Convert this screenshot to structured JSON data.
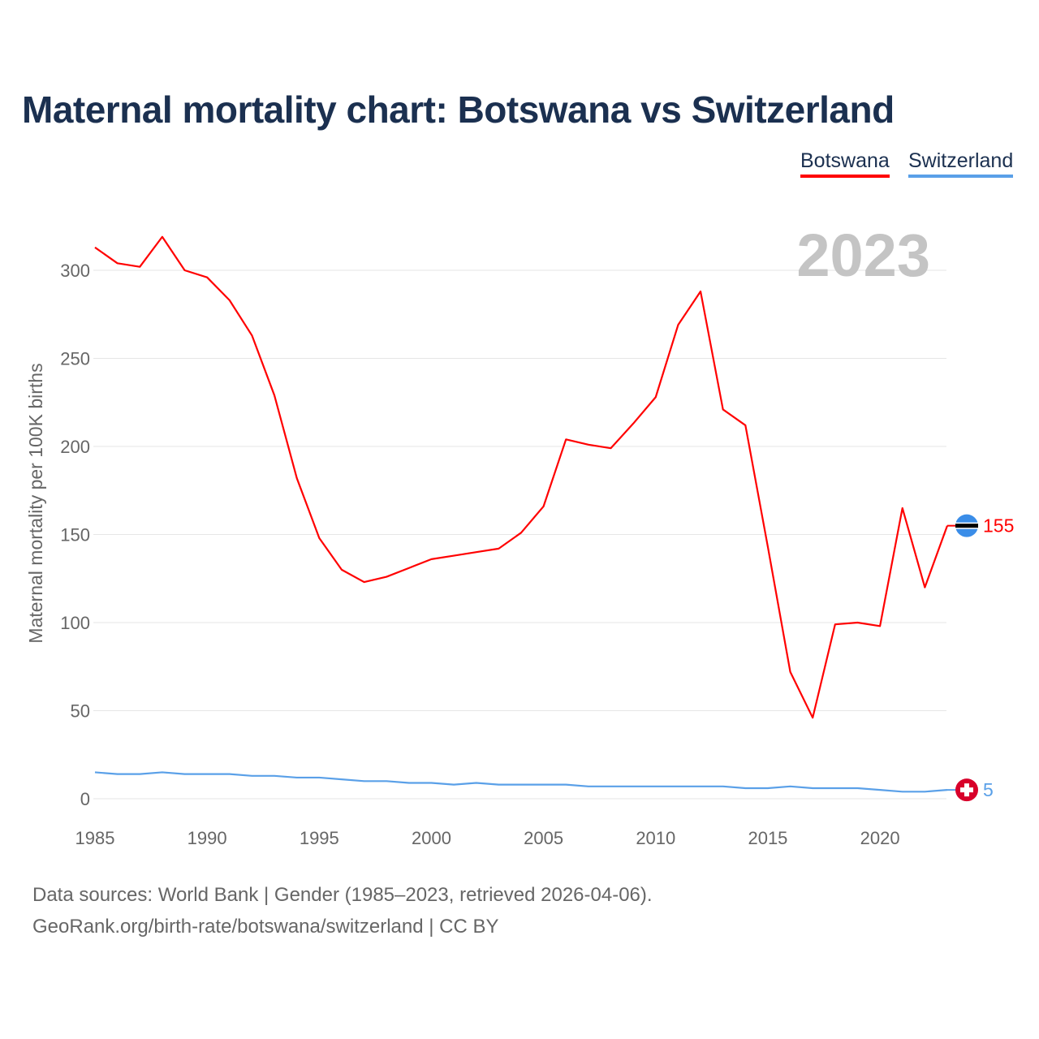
{
  "chart_data": {
    "type": "line",
    "title": "Maternal mortality chart: Botswana vs Switzerland",
    "ylabel": "Maternal mortality per 100K births",
    "xlabel": "",
    "year_label": "2023",
    "xlim": [
      1985,
      2023
    ],
    "ylim": [
      0,
      330
    ],
    "xticks": [
      "1985",
      "1990",
      "1995",
      "2000",
      "2005",
      "2010",
      "2015",
      "2020"
    ],
    "yticks": [
      "0",
      "50",
      "100",
      "150",
      "200",
      "250",
      "300"
    ],
    "grid": true,
    "legend_placement": "top-right",
    "x": [
      1985,
      1986,
      1987,
      1988,
      1989,
      1990,
      1991,
      1992,
      1993,
      1994,
      1995,
      1996,
      1997,
      1998,
      1999,
      2000,
      2001,
      2002,
      2003,
      2004,
      2005,
      2006,
      2007,
      2008,
      2009,
      2010,
      2011,
      2012,
      2013,
      2014,
      2015,
      2016,
      2017,
      2018,
      2019,
      2020,
      2021,
      2022,
      2023
    ],
    "series": [
      {
        "name": "Botswana",
        "color": "#ff0000",
        "end_label": "155",
        "values": [
          313,
          304,
          302,
          319,
          300,
          296,
          283,
          263,
          229,
          182,
          148,
          130,
          123,
          126,
          131,
          136,
          138,
          140,
          142,
          151,
          166,
          204,
          201,
          199,
          213,
          228,
          269,
          288,
          221,
          212,
          143,
          72,
          46,
          99,
          100,
          98,
          165,
          120,
          155
        ]
      },
      {
        "name": "Switzerland",
        "color": "#5aa0e8",
        "end_label": "5",
        "values": [
          15,
          14,
          14,
          15,
          14,
          14,
          14,
          13,
          13,
          12,
          12,
          11,
          10,
          10,
          9,
          9,
          8,
          9,
          8,
          8,
          8,
          8,
          7,
          7,
          7,
          7,
          7,
          7,
          7,
          6,
          6,
          7,
          6,
          6,
          6,
          5,
          4,
          4,
          5
        ]
      }
    ]
  },
  "footer": {
    "line1": "Data sources: World Bank | Gender (1985–2023, retrieved 2026-04-06).",
    "line2": "GeoRank.org/birth-rate/botswana/switzerland | CC BY"
  }
}
